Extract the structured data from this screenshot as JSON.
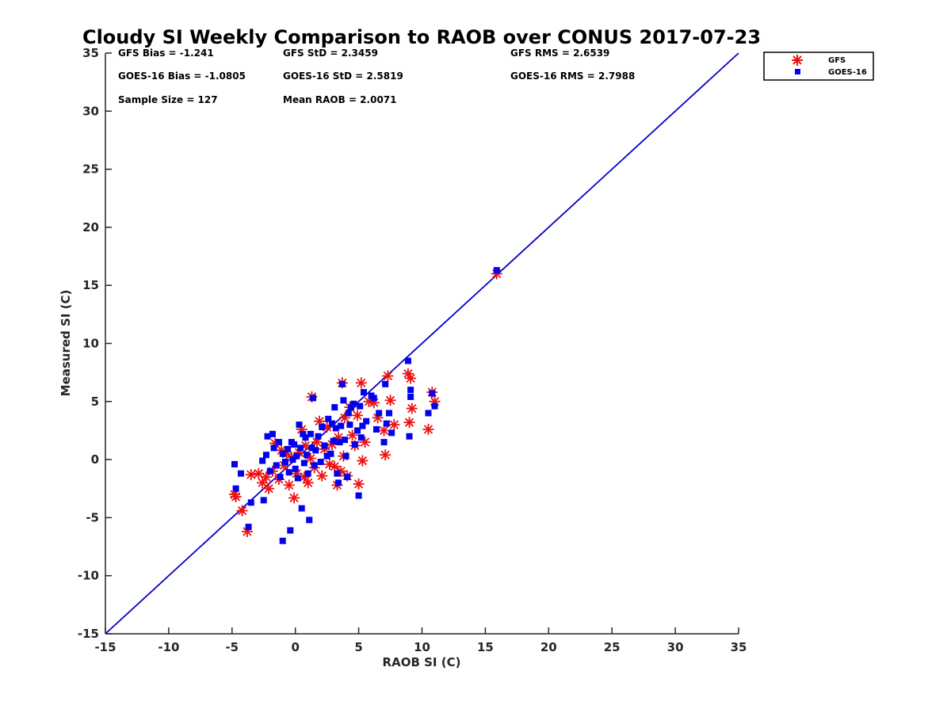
{
  "chart_data": {
    "type": "scatter",
    "title": "Cloudy SI Weekly Comparison to RAOB over CONUS 2017-07-23",
    "xlabel": "RAOB SI (C)",
    "ylabel": "Measured SI (C)",
    "xlim": [
      -15,
      35
    ],
    "ylim": [
      -15,
      35
    ],
    "xticks": [
      -15,
      -10,
      -5,
      0,
      5,
      10,
      15,
      20,
      25,
      30,
      35
    ],
    "yticks": [
      -15,
      -10,
      -5,
      0,
      5,
      10,
      15,
      20,
      25,
      30,
      35
    ],
    "grid": false,
    "legend_position": "top-right",
    "reference_line": {
      "x": [
        -15,
        35
      ],
      "y": [
        -15,
        35
      ],
      "color": "#0000cc"
    },
    "stats": [
      [
        "GFS Bias = -1.241",
        "GFS StD = 2.3459",
        "GFS RMS = 2.6539"
      ],
      [
        "GOES-16 Bias = -1.0805",
        "GOES-16 StD = 2.5819",
        "GOES-16 RMS = 2.7988"
      ],
      [
        "Sample Size = 127",
        "Mean RAOB = 2.0071"
      ]
    ],
    "series": [
      {
        "name": "GFS",
        "marker": "asterisk",
        "color": "#ee1111",
        "points": [
          [
            -4.8,
            -3.0
          ],
          [
            -4.7,
            -3.2
          ],
          [
            -4.2,
            -4.4
          ],
          [
            -3.8,
            -6.2
          ],
          [
            -3.5,
            -1.3
          ],
          [
            -2.9,
            -1.2
          ],
          [
            -2.6,
            -2.0
          ],
          [
            -2.3,
            -1.5
          ],
          [
            -2.1,
            -2.5
          ],
          [
            -1.8,
            -1.0
          ],
          [
            -1.6,
            1.4
          ],
          [
            -1.3,
            -1.7
          ],
          [
            -1.1,
            0.8
          ],
          [
            -0.9,
            -0.5
          ],
          [
            -0.7,
            0.5
          ],
          [
            -0.5,
            -2.2
          ],
          [
            -0.3,
            0.2
          ],
          [
            -0.1,
            -3.3
          ],
          [
            0.1,
            -1.2
          ],
          [
            0.3,
            0.6
          ],
          [
            0.5,
            2.6
          ],
          [
            0.7,
            -1.5
          ],
          [
            0.8,
            1.2
          ],
          [
            1.0,
            -2.0
          ],
          [
            1.2,
            0.1
          ],
          [
            1.3,
            5.4
          ],
          [
            1.5,
            -0.7
          ],
          [
            1.7,
            1.5
          ],
          [
            1.9,
            3.3
          ],
          [
            2.1,
            -1.4
          ],
          [
            2.3,
            0.9
          ],
          [
            2.5,
            2.8
          ],
          [
            2.7,
            -0.4
          ],
          [
            2.9,
            1.3
          ],
          [
            3.1,
            -0.6
          ],
          [
            3.3,
            -2.2
          ],
          [
            3.4,
            1.9
          ],
          [
            3.6,
            -1.0
          ],
          [
            3.7,
            6.6
          ],
          [
            3.8,
            0.3
          ],
          [
            3.9,
            3.6
          ],
          [
            4.1,
            -1.4
          ],
          [
            4.3,
            4.5
          ],
          [
            4.5,
            2.1
          ],
          [
            4.7,
            1.2
          ],
          [
            4.9,
            3.8
          ],
          [
            5.0,
            -2.1
          ],
          [
            5.2,
            6.6
          ],
          [
            5.3,
            -0.1
          ],
          [
            5.5,
            1.5
          ],
          [
            5.8,
            5.0
          ],
          [
            6.2,
            4.9
          ],
          [
            6.5,
            3.6
          ],
          [
            7.0,
            2.5
          ],
          [
            7.1,
            0.4
          ],
          [
            7.3,
            7.2
          ],
          [
            7.5,
            5.1
          ],
          [
            7.8,
            3.0
          ],
          [
            8.9,
            7.4
          ],
          [
            9.0,
            3.2
          ],
          [
            9.1,
            7.0
          ],
          [
            9.2,
            4.4
          ],
          [
            10.5,
            2.6
          ],
          [
            10.8,
            5.8
          ],
          [
            11.0,
            5.0
          ],
          [
            15.9,
            16.0
          ]
        ]
      },
      {
        "name": "GOES-16",
        "marker": "square",
        "color": "#0000ee",
        "points": [
          [
            -4.8,
            -0.4
          ],
          [
            -4.7,
            -2.5
          ],
          [
            -4.3,
            -1.2
          ],
          [
            -3.7,
            -5.8
          ],
          [
            -3.5,
            -3.7
          ],
          [
            -2.6,
            -0.1
          ],
          [
            -2.5,
            -3.5
          ],
          [
            -2.3,
            0.4
          ],
          [
            -2.2,
            2.0
          ],
          [
            -2.0,
            -1.0
          ],
          [
            -1.8,
            2.2
          ],
          [
            -1.7,
            1.0
          ],
          [
            -1.5,
            -0.5
          ],
          [
            -1.3,
            1.5
          ],
          [
            -1.2,
            -1.5
          ],
          [
            -1.0,
            0.5
          ],
          [
            -1.0,
            -7.0
          ],
          [
            -0.8,
            -0.2
          ],
          [
            -0.6,
            0.9
          ],
          [
            -0.5,
            -1.1
          ],
          [
            -0.4,
            -6.1
          ],
          [
            -0.3,
            1.5
          ],
          [
            -0.2,
            0.0
          ],
          [
            -0.1,
            1.3
          ],
          [
            0.0,
            -0.8
          ],
          [
            0.1,
            0.3
          ],
          [
            0.2,
            -1.6
          ],
          [
            0.3,
            3.0
          ],
          [
            0.4,
            1.0
          ],
          [
            0.5,
            -4.2
          ],
          [
            0.6,
            2.2
          ],
          [
            0.7,
            -0.3
          ],
          [
            0.8,
            1.9
          ],
          [
            0.9,
            0.4
          ],
          [
            1.0,
            -1.2
          ],
          [
            1.1,
            -5.2
          ],
          [
            1.2,
            2.2
          ],
          [
            1.3,
            1.0
          ],
          [
            1.4,
            5.3
          ],
          [
            1.5,
            -0.5
          ],
          [
            1.6,
            0.8
          ],
          [
            1.8,
            2.0
          ],
          [
            2.0,
            -0.2
          ],
          [
            2.1,
            2.8
          ],
          [
            2.3,
            1.2
          ],
          [
            2.5,
            0.3
          ],
          [
            2.6,
            3.5
          ],
          [
            2.8,
            0.5
          ],
          [
            2.9,
            3.1
          ],
          [
            3.0,
            1.6
          ],
          [
            3.1,
            4.5
          ],
          [
            3.2,
            2.7
          ],
          [
            3.3,
            -1.2
          ],
          [
            3.4,
            -2.0
          ],
          [
            3.5,
            1.5
          ],
          [
            3.6,
            2.9
          ],
          [
            3.7,
            6.5
          ],
          [
            3.8,
            5.1
          ],
          [
            3.9,
            1.7
          ],
          [
            4.0,
            0.3
          ],
          [
            4.1,
            -1.5
          ],
          [
            4.2,
            4.0
          ],
          [
            4.3,
            3.0
          ],
          [
            4.4,
            4.5
          ],
          [
            4.6,
            4.8
          ],
          [
            4.7,
            1.3
          ],
          [
            4.9,
            2.5
          ],
          [
            5.0,
            -3.1
          ],
          [
            5.1,
            4.6
          ],
          [
            5.2,
            1.9
          ],
          [
            5.3,
            2.9
          ],
          [
            5.4,
            5.8
          ],
          [
            5.6,
            3.3
          ],
          [
            6.0,
            5.5
          ],
          [
            6.2,
            5.3
          ],
          [
            6.4,
            2.6
          ],
          [
            6.6,
            4.0
          ],
          [
            7.0,
            1.5
          ],
          [
            7.1,
            6.5
          ],
          [
            7.2,
            3.1
          ],
          [
            7.4,
            4.0
          ],
          [
            7.6,
            2.3
          ],
          [
            8.9,
            8.5
          ],
          [
            9.0,
            2.0
          ],
          [
            9.1,
            5.4
          ],
          [
            9.1,
            6.0
          ],
          [
            10.5,
            4.0
          ],
          [
            10.8,
            5.7
          ],
          [
            11.0,
            4.6
          ],
          [
            15.9,
            16.3
          ]
        ]
      }
    ]
  }
}
